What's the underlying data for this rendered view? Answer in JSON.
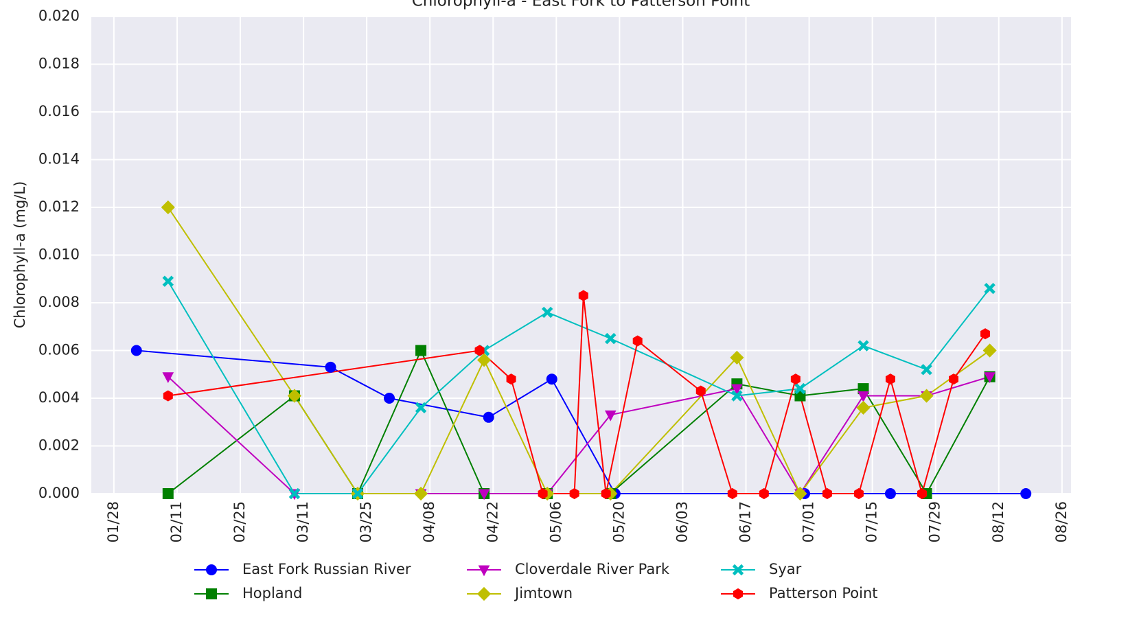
{
  "chart_data": {
    "type": "line",
    "title": "Chlorophyll-a - East Fork to Patterson Point",
    "y_label": "Chlorophyll-a (mg/L)",
    "xlim": [
      "01/23",
      "08/28"
    ],
    "xticks": [
      "01/28",
      "02/11",
      "02/25",
      "03/11",
      "03/25",
      "04/08",
      "04/22",
      "05/06",
      "05/20",
      "06/03",
      "06/17",
      "07/01",
      "07/15",
      "07/29",
      "08/12",
      "08/26"
    ],
    "ylim": [
      0,
      0.02
    ],
    "yticks": [
      {
        "value": 0,
        "label": "0.000"
      },
      {
        "value": 0.002,
        "label": "0.002"
      },
      {
        "value": 0.004,
        "label": "0.004"
      },
      {
        "value": 0.006,
        "label": "0.006"
      },
      {
        "value": 0.008,
        "label": "0.008"
      },
      {
        "value": 0.01,
        "label": "0.010"
      },
      {
        "value": 0.012,
        "label": "0.012"
      },
      {
        "value": 0.014,
        "label": "0.014"
      },
      {
        "value": 0.016,
        "label": "0.016"
      },
      {
        "value": 0.018,
        "label": "0.018"
      },
      {
        "value": 0.02,
        "label": "0.020"
      }
    ],
    "grid": true,
    "legend": "bottom",
    "series": [
      {
        "name": "East Fork Russian River",
        "color": "#0000ff",
        "marker": "o",
        "x": [
          "02/02",
          "03/17",
          "03/30",
          "04/21",
          "05/05",
          "05/19",
          "06/30",
          "07/19",
          "08/18"
        ],
        "values": [
          0.006,
          0.0053,
          0.004,
          0.0032,
          0.0048,
          0,
          0,
          0,
          0
        ]
      },
      {
        "name": "Hopland",
        "color": "#008000",
        "marker": "s",
        "x": [
          "02/09",
          "03/09",
          "03/23",
          "04/06",
          "04/20",
          "05/04",
          "05/18",
          "06/15",
          "06/29",
          "07/13",
          "07/27",
          "08/10"
        ],
        "values": [
          0,
          0.0041,
          0,
          0.006,
          0,
          0,
          0,
          0.0046,
          0.0041,
          0.0044,
          0,
          0.0049
        ]
      },
      {
        "name": "Cloverdale River Park",
        "color": "#bf00bf",
        "marker": "v",
        "x": [
          "02/09",
          "03/09",
          "03/23",
          "04/06",
          "04/20",
          "05/04",
          "05/18",
          "06/15",
          "06/29",
          "07/13",
          "07/27",
          "08/10"
        ],
        "values": [
          0.0049,
          0,
          0,
          0,
          0,
          0,
          0.0033,
          0.0044,
          0,
          0.0041,
          0.0041,
          0.0049
        ]
      },
      {
        "name": "Jimtown",
        "color": "#bfbf00",
        "marker": "D",
        "x": [
          "02/09",
          "03/09",
          "03/23",
          "04/06",
          "04/20",
          "05/04",
          "05/18",
          "06/15",
          "06/29",
          "07/13",
          "07/27",
          "08/10"
        ],
        "values": [
          0.012,
          0.0041,
          0,
          0,
          0.0056,
          0,
          0,
          0.0057,
          0,
          0.0036,
          0.0041,
          0.006
        ]
      },
      {
        "name": "Syar",
        "color": "#00bfbf",
        "marker": "X",
        "x": [
          "02/09",
          "03/09",
          "03/23",
          "04/06",
          "04/20",
          "05/04",
          "05/18",
          "06/15",
          "06/29",
          "07/13",
          "07/27",
          "08/10"
        ],
        "values": [
          0.0089,
          0,
          0,
          0.0036,
          0.006,
          0.0076,
          0.0065,
          0.0041,
          0.0044,
          0.0062,
          0.0052,
          0.0086
        ]
      },
      {
        "name": "Patterson Point",
        "color": "#ff0000",
        "marker": "h",
        "x": [
          "02/09",
          "04/19",
          "04/26",
          "05/03",
          "05/10",
          "05/12",
          "05/17",
          "05/24",
          "06/07",
          "06/14",
          "06/21",
          "06/28",
          "07/05",
          "07/12",
          "07/19",
          "07/26",
          "08/02",
          "08/09"
        ],
        "values": [
          0.0041,
          0.006,
          0.0048,
          0,
          0,
          0.0083,
          0,
          0.0064,
          0.0043,
          0,
          0,
          0.0048,
          0,
          0,
          0.0048,
          0,
          0.0048,
          0.0067
        ]
      }
    ]
  }
}
